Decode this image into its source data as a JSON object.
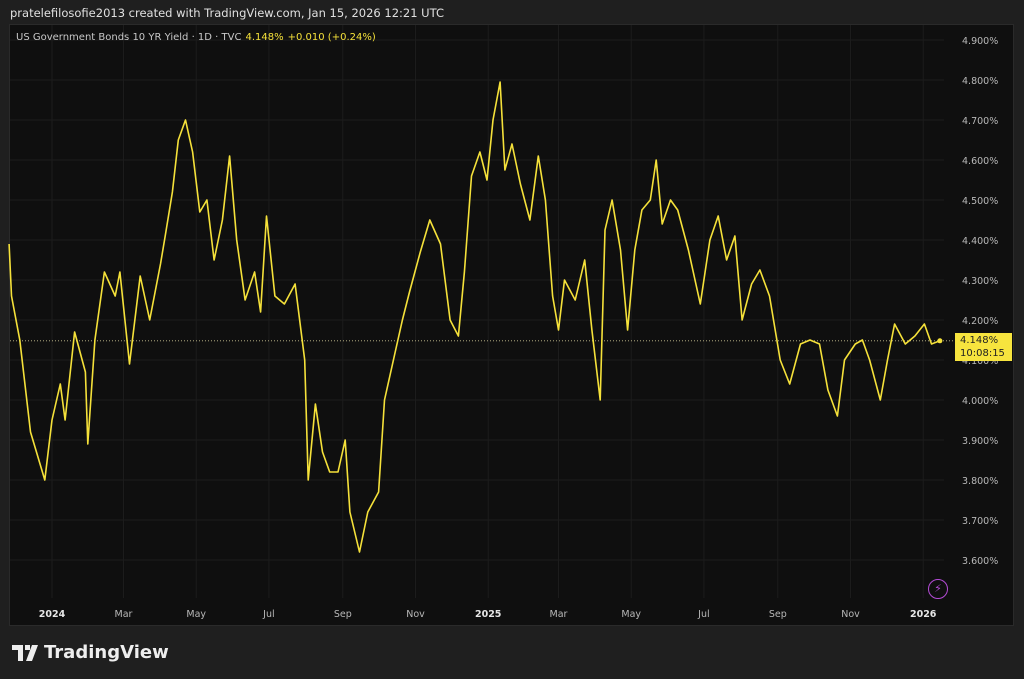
{
  "caption": "pratelefilosofie2013 created with TradingView.com, Jan 15, 2026 12:21 UTC",
  "legend": {
    "symbol": "US Government Bonds 10 YR Yield · 1D · TVC",
    "last": "4.148%",
    "change": "+0.010 (+0.24%)"
  },
  "badge": {
    "price": "4.148%",
    "countdown": "10:08:15"
  },
  "brand": "TradingView",
  "colors": {
    "line": "#f5e13a",
    "background": "#0f0f0f",
    "badge": "#f7e43e",
    "alert_icon": "#b44bd6"
  },
  "icons": {
    "alert": "lightning-icon",
    "logo": "tradingview-logo-icon"
  },
  "chart_data": {
    "type": "line",
    "ylim": [
      3.55,
      4.93
    ],
    "y_ticks": [
      "4.900%",
      "4.800%",
      "4.700%",
      "4.600%",
      "4.500%",
      "4.400%",
      "4.300%",
      "4.200%",
      "4.100%",
      "4.000%",
      "3.900%",
      "3.800%",
      "3.700%",
      "3.600%"
    ],
    "x_ticks": [
      {
        "label": "2024",
        "date": "2024-01-01",
        "bold": true
      },
      {
        "label": "Mar",
        "date": "2024-03-01"
      },
      {
        "label": "May",
        "date": "2024-05-01"
      },
      {
        "label": "Jul",
        "date": "2024-07-01"
      },
      {
        "label": "Sep",
        "date": "2024-09-01"
      },
      {
        "label": "Nov",
        "date": "2024-11-01"
      },
      {
        "label": "2025",
        "date": "2025-01-01",
        "bold": true
      },
      {
        "label": "Mar",
        "date": "2025-03-01"
      },
      {
        "label": "May",
        "date": "2025-05-01"
      },
      {
        "label": "Jul",
        "date": "2025-07-01"
      },
      {
        "label": "Sep",
        "date": "2025-09-01"
      },
      {
        "label": "Nov",
        "date": "2025-11-01"
      },
      {
        "label": "2026",
        "date": "2026-01-01",
        "bold": true
      }
    ],
    "last_value": 4.148,
    "grid": true,
    "points": [
      [
        "2023-11-26",
        4.39
      ],
      [
        "2023-11-28",
        4.26
      ],
      [
        "2023-12-05",
        4.15
      ],
      [
        "2023-12-14",
        3.92
      ],
      [
        "2023-12-26",
        3.8
      ],
      [
        "2024-01-01",
        3.95
      ],
      [
        "2024-01-08",
        4.04
      ],
      [
        "2024-01-12",
        3.95
      ],
      [
        "2024-01-20",
        4.17
      ],
      [
        "2024-01-29",
        4.07
      ],
      [
        "2024-01-31",
        3.89
      ],
      [
        "2024-02-06",
        4.15
      ],
      [
        "2024-02-14",
        4.32
      ],
      [
        "2024-02-23",
        4.26
      ],
      [
        "2024-02-27",
        4.32
      ],
      [
        "2024-03-06",
        4.09
      ],
      [
        "2024-03-15",
        4.31
      ],
      [
        "2024-03-23",
        4.2
      ],
      [
        "2024-04-01",
        4.34
      ],
      [
        "2024-04-05",
        4.41
      ],
      [
        "2024-04-11",
        4.52
      ],
      [
        "2024-04-16",
        4.65
      ],
      [
        "2024-04-22",
        4.7
      ],
      [
        "2024-04-28",
        4.62
      ],
      [
        "2024-05-04",
        4.47
      ],
      [
        "2024-05-10",
        4.5
      ],
      [
        "2024-05-16",
        4.35
      ],
      [
        "2024-05-23",
        4.45
      ],
      [
        "2024-05-29",
        4.61
      ],
      [
        "2024-06-04",
        4.4
      ],
      [
        "2024-06-11",
        4.25
      ],
      [
        "2024-06-19",
        4.32
      ],
      [
        "2024-06-24",
        4.22
      ],
      [
        "2024-06-29",
        4.46
      ],
      [
        "2024-07-06",
        4.26
      ],
      [
        "2024-07-14",
        4.24
      ],
      [
        "2024-07-23",
        4.29
      ],
      [
        "2024-07-31",
        4.1
      ],
      [
        "2024-08-03",
        3.8
      ],
      [
        "2024-08-09",
        3.99
      ],
      [
        "2024-08-15",
        3.87
      ],
      [
        "2024-08-21",
        3.82
      ],
      [
        "2024-08-28",
        3.82
      ],
      [
        "2024-09-03",
        3.9
      ],
      [
        "2024-09-07",
        3.72
      ],
      [
        "2024-09-15",
        3.62
      ],
      [
        "2024-09-22",
        3.72
      ],
      [
        "2024-10-01",
        3.77
      ],
      [
        "2024-10-06",
        4.0
      ],
      [
        "2024-10-15",
        4.12
      ],
      [
        "2024-10-21",
        4.2
      ],
      [
        "2024-10-27",
        4.27
      ],
      [
        "2024-11-05",
        4.37
      ],
      [
        "2024-11-13",
        4.45
      ],
      [
        "2024-11-22",
        4.39
      ],
      [
        "2024-11-30",
        4.2
      ],
      [
        "2024-12-07",
        4.16
      ],
      [
        "2024-12-12",
        4.32
      ],
      [
        "2024-12-18",
        4.56
      ],
      [
        "2024-12-25",
        4.62
      ],
      [
        "2024-12-31",
        4.55
      ],
      [
        "2025-01-05",
        4.7
      ],
      [
        "2025-01-11",
        4.795
      ],
      [
        "2025-01-15",
        4.575
      ],
      [
        "2025-01-21",
        4.64
      ],
      [
        "2025-01-28",
        4.54
      ],
      [
        "2025-02-05",
        4.45
      ],
      [
        "2025-02-12",
        4.61
      ],
      [
        "2025-02-18",
        4.5
      ],
      [
        "2025-02-24",
        4.26
      ],
      [
        "2025-03-01",
        4.175
      ],
      [
        "2025-03-06",
        4.3
      ],
      [
        "2025-03-15",
        4.25
      ],
      [
        "2025-03-23",
        4.35
      ],
      [
        "2025-03-29",
        4.175
      ],
      [
        "2025-04-05",
        4.0
      ],
      [
        "2025-04-09",
        4.425
      ],
      [
        "2025-04-15",
        4.5
      ],
      [
        "2025-04-22",
        4.375
      ],
      [
        "2025-04-28",
        4.175
      ],
      [
        "2025-05-04",
        4.375
      ],
      [
        "2025-05-10",
        4.475
      ],
      [
        "2025-05-17",
        4.5
      ],
      [
        "2025-05-22",
        4.6
      ],
      [
        "2025-05-27",
        4.44
      ],
      [
        "2025-06-03",
        4.5
      ],
      [
        "2025-06-09",
        4.475
      ],
      [
        "2025-06-18",
        4.375
      ],
      [
        "2025-06-28",
        4.24
      ],
      [
        "2025-07-06",
        4.4
      ],
      [
        "2025-07-13",
        4.46
      ],
      [
        "2025-07-20",
        4.35
      ],
      [
        "2025-07-27",
        4.41
      ],
      [
        "2025-08-02",
        4.2
      ],
      [
        "2025-08-10",
        4.29
      ],
      [
        "2025-08-17",
        4.325
      ],
      [
        "2025-08-25",
        4.26
      ],
      [
        "2025-09-03",
        4.1
      ],
      [
        "2025-09-11",
        4.04
      ],
      [
        "2025-09-20",
        4.14
      ],
      [
        "2025-09-28",
        4.15
      ],
      [
        "2025-10-06",
        4.14
      ],
      [
        "2025-10-13",
        4.025
      ],
      [
        "2025-10-21",
        3.96
      ],
      [
        "2025-10-27",
        4.1
      ],
      [
        "2025-11-05",
        4.14
      ],
      [
        "2025-11-11",
        4.15
      ],
      [
        "2025-11-17",
        4.1
      ],
      [
        "2025-11-26",
        4.0
      ],
      [
        "2025-12-02",
        4.1
      ],
      [
        "2025-12-08",
        4.19
      ],
      [
        "2025-12-17",
        4.14
      ],
      [
        "2025-12-25",
        4.16
      ],
      [
        "2026-01-02",
        4.19
      ],
      [
        "2026-01-08",
        4.14
      ],
      [
        "2026-01-15",
        4.148
      ]
    ]
  }
}
